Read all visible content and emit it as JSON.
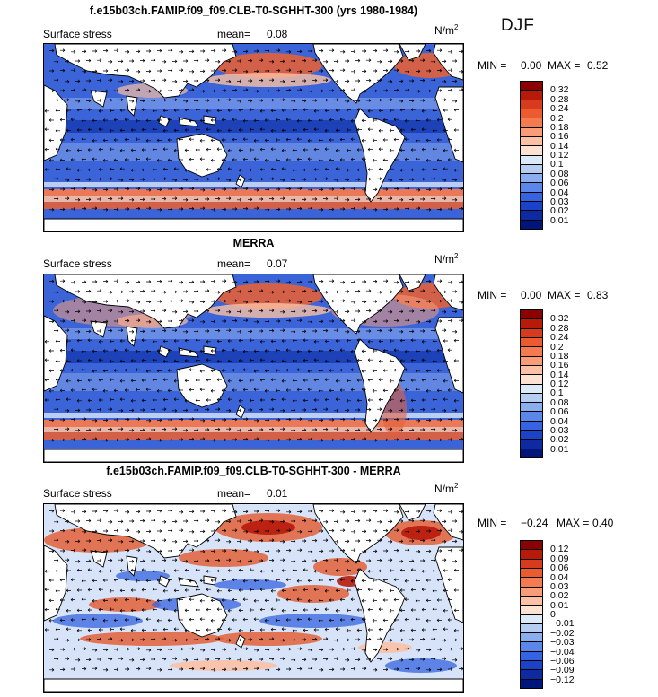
{
  "season": "DJF",
  "panels": [
    {
      "title": "f.e15b03ch.FAMIP.f09_f09.CLB-T0-SGHHT-300 (yrs 1980-1984)",
      "field": "Surface stress",
      "mean_label": "mean=",
      "mean_value": "0.08",
      "unit_base": "N/m",
      "unit_exp": "2",
      "min_label": "MIN =",
      "min_value": "0.00",
      "max_label": "MAX =",
      "max_value": "0.52",
      "levels": [
        "0.32",
        "0.28",
        "0.24",
        "0.2",
        "0.18",
        "0.16",
        "0.14",
        "0.12",
        "0.1",
        "0.08",
        "0.06",
        "0.04",
        "0.03",
        "0.02",
        "0.01"
      ],
      "colors": [
        "#8b0000",
        "#b81a0a",
        "#d73a1c",
        "#ec5a30",
        "#f47a50",
        "#f99c78",
        "#fcc0a4",
        "#fde2d2",
        "#dce9f9",
        "#b6cdf2",
        "#8aaef0",
        "#5b87ea",
        "#3563e2",
        "#1b43c8",
        "#0d2aa0",
        "#00157a"
      ]
    },
    {
      "title": "MERRA",
      "field": "Surface stress",
      "mean_label": "mean=",
      "mean_value": "0.07",
      "unit_base": "N/m",
      "unit_exp": "2",
      "min_label": "MIN =",
      "min_value": "0.00",
      "max_label": "MAX =",
      "max_value": "0.83",
      "levels": [
        "0.32",
        "0.28",
        "0.24",
        "0.2",
        "0.18",
        "0.16",
        "0.14",
        "0.12",
        "0.1",
        "0.08",
        "0.06",
        "0.04",
        "0.03",
        "0.02",
        "0.01"
      ],
      "colors": [
        "#8b0000",
        "#b81a0a",
        "#d73a1c",
        "#ec5a30",
        "#f47a50",
        "#f99c78",
        "#fcc0a4",
        "#fde2d2",
        "#dce9f9",
        "#b6cdf2",
        "#8aaef0",
        "#5b87ea",
        "#3563e2",
        "#1b43c8",
        "#0d2aa0",
        "#00157a"
      ]
    },
    {
      "title": "f.e15b03ch.FAMIP.f09_f09.CLB-T0-SGHHT-300 - MERRA",
      "field": "Surface stress",
      "mean_label": "mean=",
      "mean_value": "0.01",
      "unit_base": "N/m",
      "unit_exp": "2",
      "min_label": "MIN =",
      "min_value": "−0.24",
      "max_label": "MAX =",
      "max_value": "0.40",
      "levels": [
        "0.12",
        "0.09",
        "0.06",
        "0.04",
        "0.03",
        "0.02",
        "0.01",
        "0",
        "−0.01",
        "−0.02",
        "−0.03",
        "−0.04",
        "−0.06",
        "−0.09",
        "−0.12"
      ],
      "colors": [
        "#8b0000",
        "#b81a0a",
        "#d73a1c",
        "#ec5a30",
        "#f47a50",
        "#f99c78",
        "#fcc0a4",
        "#fde2d2",
        "#dce9f9",
        "#b6cdf2",
        "#8aaef0",
        "#5b87ea",
        "#3563e2",
        "#1b43c8",
        "#0d2aa0",
        "#00157a"
      ]
    }
  ]
}
